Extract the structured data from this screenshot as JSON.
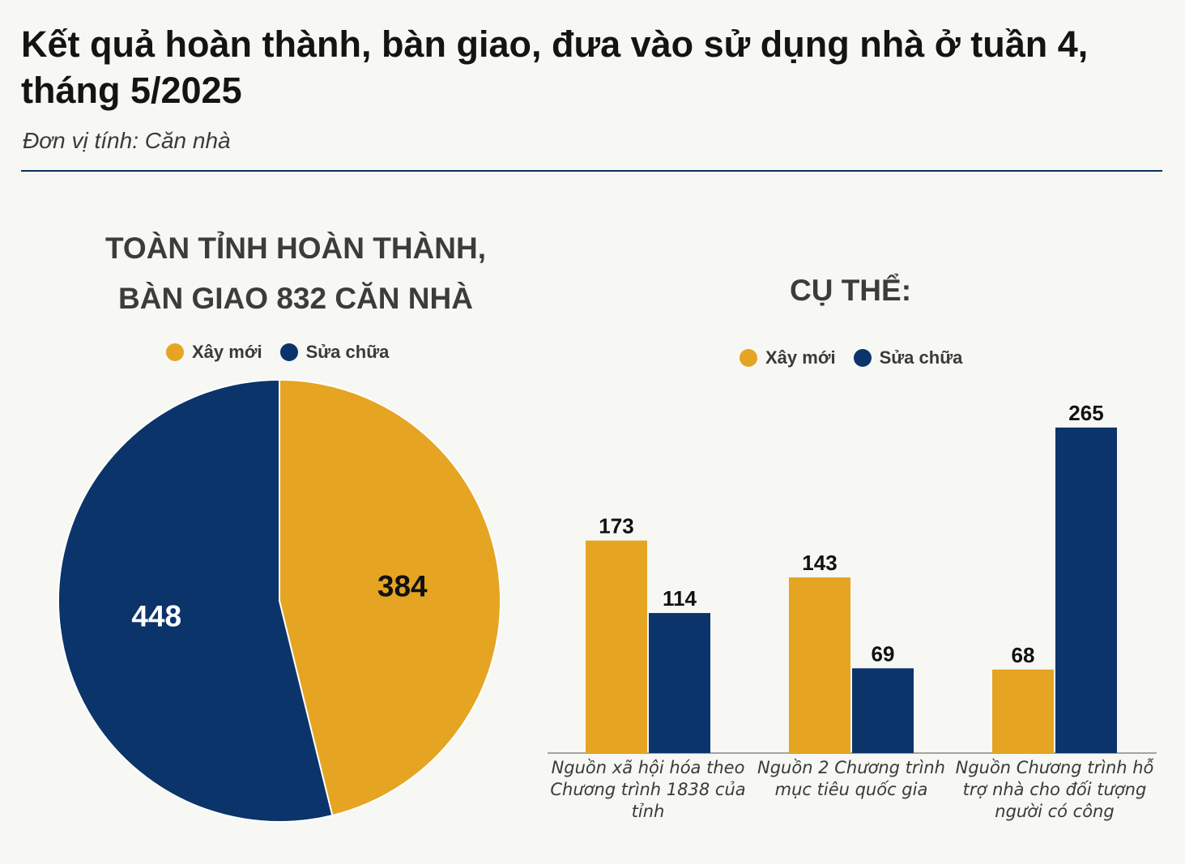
{
  "title": "Kết quả hoàn thành, bàn giao, đưa vào sử dụng nhà ở tuần 4, tháng 5/2025",
  "subtitle": "Đơn vị tính: Căn nhà",
  "colors": {
    "xay_moi": "#e5a422",
    "sua_chua": "#0b346b",
    "rule": "#0e2f5c"
  },
  "pie_heading": {
    "line1": "TOÀN TỈNH HOÀN THÀNH,",
    "line2": "BÀN GIAO 832 CĂN NHÀ"
  },
  "bar_heading": "CỤ THỂ:",
  "legend": {
    "xay_moi": "Xây mới",
    "sua_chua": "Sửa chữa"
  },
  "chart_data": [
    {
      "type": "pie",
      "title": "TOÀN TỈNH HOÀN THÀNH, BÀN GIAO 832 CĂN NHÀ",
      "labels": [
        "Xây mới",
        "Sửa chữa"
      ],
      "values": [
        384,
        448
      ],
      "colors": [
        "#e5a422",
        "#0b346b"
      ],
      "legend": "top"
    },
    {
      "type": "bar",
      "title": "CỤ THỂ:",
      "categories": [
        "Nguồn xã hội hóa theo Chương trình 1838 của tỉnh",
        "Nguồn 2 Chương trình mục tiêu quốc gia",
        "Nguồn Chương trình hỗ trợ nhà cho đối tượng người có công"
      ],
      "series": [
        {
          "name": "Xây mới",
          "values": [
            173,
            143,
            68
          ]
        },
        {
          "name": "Sửa chữa",
          "values": [
            114,
            69,
            265
          ]
        }
      ],
      "ylim": [
        0,
        265
      ],
      "grid": false,
      "legend": "top"
    }
  ]
}
